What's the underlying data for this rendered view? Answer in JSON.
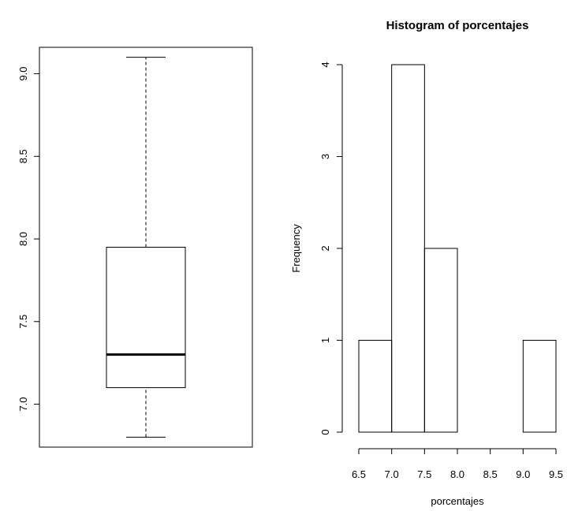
{
  "chart_data": [
    {
      "type": "boxplot",
      "title": "",
      "xlabel": "",
      "ylabel": "",
      "ylim": [
        6.74,
        9.16
      ],
      "yticks": [
        7.0,
        7.5,
        8.0,
        8.5,
        9.0
      ],
      "ytick_labels": [
        "7.0",
        "7.5",
        "8.0",
        "8.5",
        "9.0"
      ],
      "stats": {
        "min": 6.8,
        "q1": 7.1,
        "median": 7.3,
        "q3": 7.95,
        "max": 9.1
      }
    },
    {
      "type": "bar",
      "title": "Histogram of porcentajes",
      "xlabel": "porcentajes",
      "ylabel": "Frequency",
      "xlim": [
        6.5,
        9.5
      ],
      "ylim": [
        0,
        4
      ],
      "bins": [
        {
          "from": 6.5,
          "to": 7.0,
          "count": 1
        },
        {
          "from": 7.0,
          "to": 7.5,
          "count": 4
        },
        {
          "from": 7.5,
          "to": 8.0,
          "count": 2
        },
        {
          "from": 8.0,
          "to": 8.5,
          "count": 0
        },
        {
          "from": 8.5,
          "to": 9.0,
          "count": 0
        },
        {
          "from": 9.0,
          "to": 9.5,
          "count": 1
        }
      ],
      "xticks": [
        6.5,
        7.0,
        7.5,
        8.0,
        8.5,
        9.0,
        9.5
      ],
      "xtick_labels": [
        "6.5",
        "7.0",
        "7.5",
        "8.0",
        "8.5",
        "9.0",
        "9.5"
      ],
      "yticks": [
        0,
        1,
        2,
        3,
        4
      ],
      "ytick_labels": [
        "0",
        "1",
        "2",
        "3",
        "4"
      ]
    }
  ]
}
